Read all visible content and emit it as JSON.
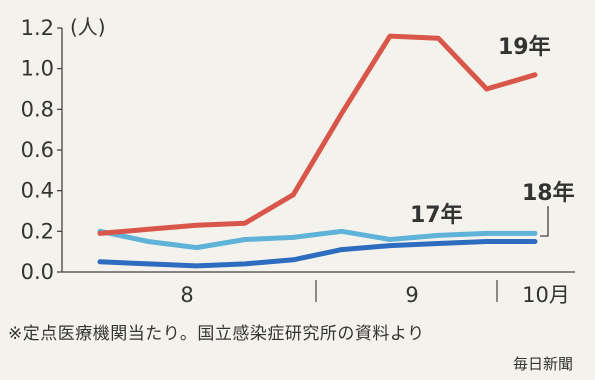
{
  "chart_data": {
    "type": "line",
    "ylabel_unit": "(人)",
    "ylim": [
      0.0,
      1.2
    ],
    "y_ticks": [
      "0.0",
      "0.2",
      "0.4",
      "0.6",
      "0.8",
      "1.0",
      "1.2"
    ],
    "x_month_labels": [
      "8",
      "9",
      "10月"
    ],
    "x_points": 12,
    "grid": false,
    "series": [
      {
        "name": "19年",
        "color": "#d9574a",
        "values": [
          0.19,
          0.21,
          0.23,
          0.24,
          0.38,
          0.78,
          1.16,
          1.15,
          0.9,
          0.97
        ]
      },
      {
        "name": "18年",
        "color": "#5fb3d9",
        "values": [
          0.2,
          0.15,
          0.12,
          0.16,
          0.17,
          0.2,
          0.16,
          0.18,
          0.19,
          0.19
        ]
      },
      {
        "name": "17年",
        "color": "#2e6cc0",
        "values": [
          0.05,
          0.04,
          0.03,
          0.04,
          0.06,
          0.11,
          0.13,
          0.14,
          0.15,
          0.15
        ]
      }
    ]
  },
  "footnote": "※定点医療機関当たり。国立感染症研究所の資料より",
  "source": "毎日新聞"
}
